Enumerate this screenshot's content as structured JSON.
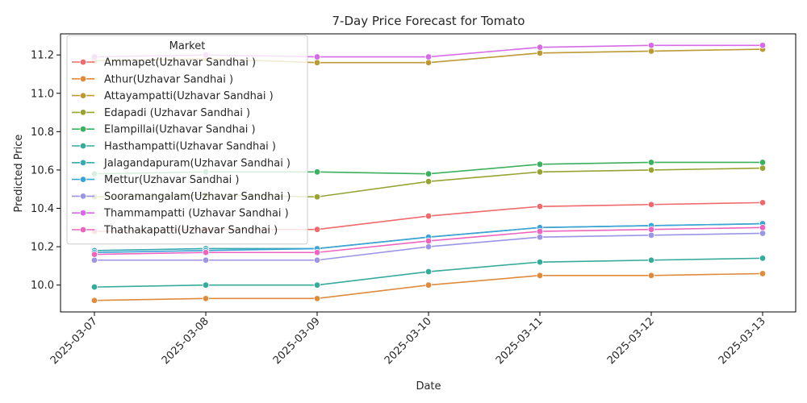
{
  "chart_data": {
    "type": "line",
    "title": "7-Day Price Forecast for Tomato",
    "xlabel": "Date",
    "ylabel": "Predicted Price",
    "ylim": [
      9.86,
      11.31
    ],
    "yticks": [
      10.0,
      10.2,
      10.4,
      10.6,
      10.8,
      11.0,
      11.2
    ],
    "grid": false,
    "legend_title": "Market",
    "legend_position": "upper-left",
    "x": [
      "2025-03-07",
      "2025-03-08",
      "2025-03-09",
      "2025-03-10",
      "2025-03-11",
      "2025-03-12",
      "2025-03-13"
    ],
    "series": [
      {
        "name": "Ammapet(Uzhavar Sandhai )",
        "color": "#f0696d",
        "values": [
          10.28,
          10.29,
          10.29,
          10.36,
          10.41,
          10.42,
          10.43
        ]
      },
      {
        "name": "Athur(Uzhavar Sandhai )",
        "color": "#e08a3c",
        "values": [
          9.92,
          9.93,
          9.93,
          10.0,
          10.05,
          10.05,
          10.06
        ]
      },
      {
        "name": "Attayampatti(Uzhavar Sandhai )",
        "color": "#bb9a34",
        "values": [
          11.17,
          11.18,
          11.16,
          11.16,
          11.21,
          11.22,
          11.23
        ]
      },
      {
        "name": "Edapadi (Uzhavar Sandhai )",
        "color": "#97a433",
        "values": [
          10.46,
          10.47,
          10.46,
          10.54,
          10.59,
          10.6,
          10.61
        ]
      },
      {
        "name": "Elampillai(Uzhavar Sandhai )",
        "color": "#3cb05e",
        "values": [
          10.58,
          10.59,
          10.59,
          10.58,
          10.63,
          10.64,
          10.64
        ]
      },
      {
        "name": "Hasthampatti(Uzhavar Sandhai )",
        "color": "#36ab9c",
        "values": [
          9.99,
          10.0,
          10.0,
          10.07,
          10.12,
          10.13,
          10.14
        ]
      },
      {
        "name": "Jalagandapuram(Uzhavar Sandhai )",
        "color": "#36aab0",
        "values": [
          10.18,
          10.19,
          10.19,
          10.25,
          10.3,
          10.31,
          10.32
        ]
      },
      {
        "name": "Mettur(Uzhavar Sandhai )",
        "color": "#3ca3d6",
        "values": [
          10.17,
          10.18,
          10.19,
          10.25,
          10.3,
          10.31,
          10.32
        ]
      },
      {
        "name": "Sooramangalam(Uzhavar Sandhai )",
        "color": "#9c95e6",
        "values": [
          10.13,
          10.13,
          10.13,
          10.2,
          10.25,
          10.26,
          10.27
        ]
      },
      {
        "name": "Thammampatti (Uzhavar Sandhai )",
        "color": "#d66be6",
        "values": [
          11.19,
          11.2,
          11.19,
          11.19,
          11.24,
          11.25,
          11.25
        ]
      },
      {
        "name": "Thathakapatti(Uzhavar Sandhai )",
        "color": "#ed65be",
        "values": [
          10.16,
          10.17,
          10.17,
          10.23,
          10.28,
          10.29,
          10.3
        ]
      }
    ]
  }
}
